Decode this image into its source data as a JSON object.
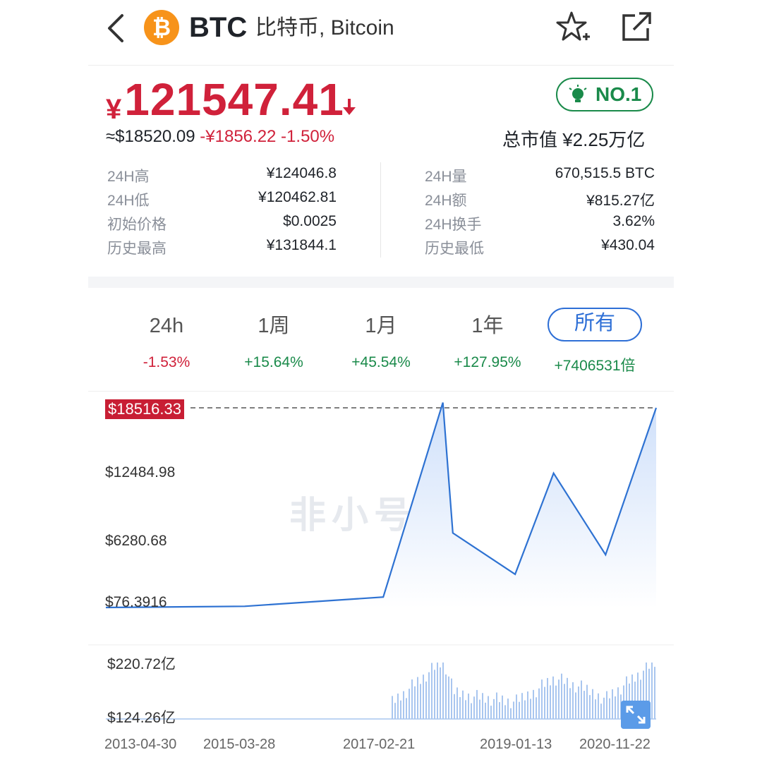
{
  "header": {
    "symbol": "BTC",
    "names": "比特币, Bitcoin",
    "logo_glyph": "₿",
    "icons": [
      "back-chevron-icon",
      "star-add-icon",
      "share-icon"
    ]
  },
  "price": {
    "currency_symbol": "¥",
    "value": "121547.41",
    "usd_approx": "≈$18520.09",
    "change_text": "-¥1856.22 -1.50%",
    "rank": "NO.1",
    "market_cap": "总市值  ¥2.25万亿"
  },
  "stats_left": [
    {
      "label": "24H高",
      "value": "¥124046.8"
    },
    {
      "label": "24H低",
      "value": "¥120462.81"
    },
    {
      "label": "初始价格",
      "value": "$0.0025"
    },
    {
      "label": "历史最高",
      "value": "¥131844.1"
    }
  ],
  "stats_right": [
    {
      "label": "24H量",
      "value": "670,515.5 BTC"
    },
    {
      "label": "24H额",
      "value": "¥815.27亿"
    },
    {
      "label": "24H换手",
      "value": "3.62%"
    },
    {
      "label": "历史最低",
      "value": "¥430.04"
    }
  ],
  "tabs": [
    {
      "label": "24h",
      "change": "-1.53%"
    },
    {
      "label": "1周",
      "change": "+15.64%"
    },
    {
      "label": "1月",
      "change": "+45.54%"
    },
    {
      "label": "1年",
      "change": "+127.95%"
    },
    {
      "label": "所有",
      "change": "+7406531倍"
    }
  ],
  "chart": {
    "current_price_tag": "$18516.33",
    "y_labels": [
      "$12484.98",
      "$6280.68",
      "$76.3916"
    ],
    "volume_labels": [
      "$220.72亿",
      "$124.26亿"
    ],
    "date_labels": [
      "2013-04-30",
      "2015-03-28",
      "2017-02-21",
      "2019-01-13",
      "2020-11-22"
    ],
    "watermark": "非小号",
    "line_color": "#2e72d2",
    "fill_color": "#cfe0fa"
  },
  "chart_data": {
    "type": "area",
    "x": [
      "2013-04-30",
      "2015-03-28",
      "2017-02-21",
      "2017-12-17",
      "2018-02-05",
      "2018-12-15",
      "2019-06-26",
      "2020-03-13",
      "2020-11-22"
    ],
    "series": [
      {
        "values": [
          140,
          250,
          1100,
          19000,
          7000,
          3200,
          12500,
          5000,
          18516.33
        ]
      }
    ],
    "ylim": [
      76.3916,
      18516.33
    ]
  }
}
